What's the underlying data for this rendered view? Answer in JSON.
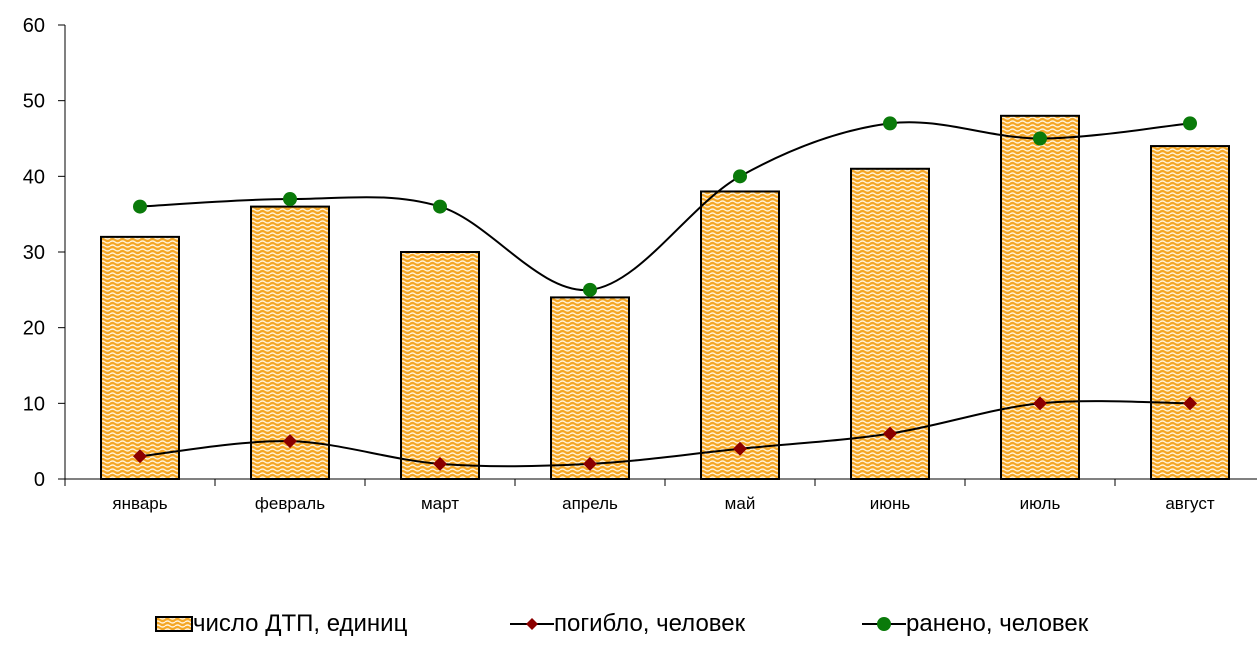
{
  "chart_data": {
    "type": "bar",
    "categories": [
      "январь",
      "февраль",
      "март",
      "апрель",
      "май",
      "июнь",
      "июль",
      "август"
    ],
    "series": [
      {
        "name": "число ДТП, единиц",
        "type": "bar",
        "values": [
          32,
          36,
          30,
          24,
          38,
          41,
          48,
          44
        ],
        "color": "#f5a623"
      },
      {
        "name": "погибло, человек",
        "type": "line",
        "marker": "diamond",
        "values": [
          3,
          5,
          2,
          2,
          4,
          6,
          10,
          10
        ],
        "color": "#8b0000"
      },
      {
        "name": "ранено, человек",
        "type": "line",
        "marker": "circle",
        "values": [
          36,
          37,
          36,
          25,
          40,
          47,
          45,
          47
        ],
        "color": "#0a7a0a"
      }
    ],
    "ylim": [
      0,
      60
    ],
    "yticks": [
      0,
      10,
      20,
      30,
      40,
      50,
      60
    ],
    "title": "",
    "xlabel": "",
    "ylabel": "",
    "grid": false,
    "legend_position": "bottom"
  }
}
